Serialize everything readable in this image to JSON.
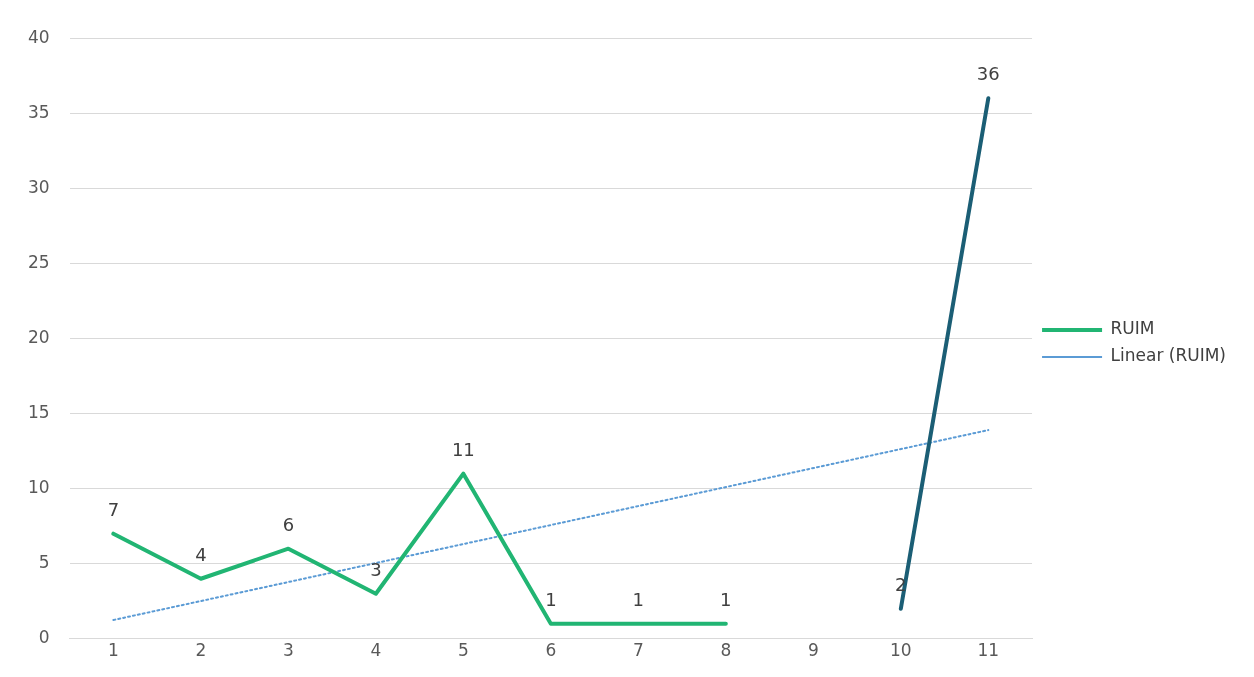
{
  "chart_data": {
    "type": "line",
    "x": [
      1,
      2,
      3,
      4,
      5,
      6,
      7,
      8,
      9,
      10,
      11
    ],
    "xlim": [
      0.5,
      11.5
    ],
    "xticks": [
      1,
      2,
      3,
      4,
      5,
      6,
      7,
      8,
      9,
      10,
      11
    ],
    "ylim": [
      0,
      40
    ],
    "yticks": [
      0,
      5,
      10,
      15,
      20,
      25,
      30,
      35,
      40
    ],
    "grid": "y",
    "legend": "right",
    "marker": "none",
    "series": [
      {
        "name": "RUIM",
        "color": "#21b573",
        "values": [
          7,
          4,
          6,
          3,
          11,
          1,
          1,
          1,
          null,
          null,
          null
        ],
        "value_labels": [
          "7",
          "4",
          "6",
          "3",
          "11",
          "1",
          "1",
          "1",
          null,
          null,
          null
        ]
      },
      {
        "color": "#1b5e75",
        "values": [
          null,
          null,
          null,
          null,
          null,
          null,
          null,
          null,
          null,
          2,
          36
        ],
        "value_labels": [
          null,
          null,
          null,
          null,
          null,
          null,
          null,
          null,
          null,
          "2",
          "36"
        ]
      },
      {
        "name": "Linear (RUIM)",
        "type": "line",
        "color": "#5b9bd5",
        "line_style": "dotted",
        "x": [
          1,
          11
        ],
        "values": [
          1.25,
          13.9
        ]
      }
    ]
  }
}
